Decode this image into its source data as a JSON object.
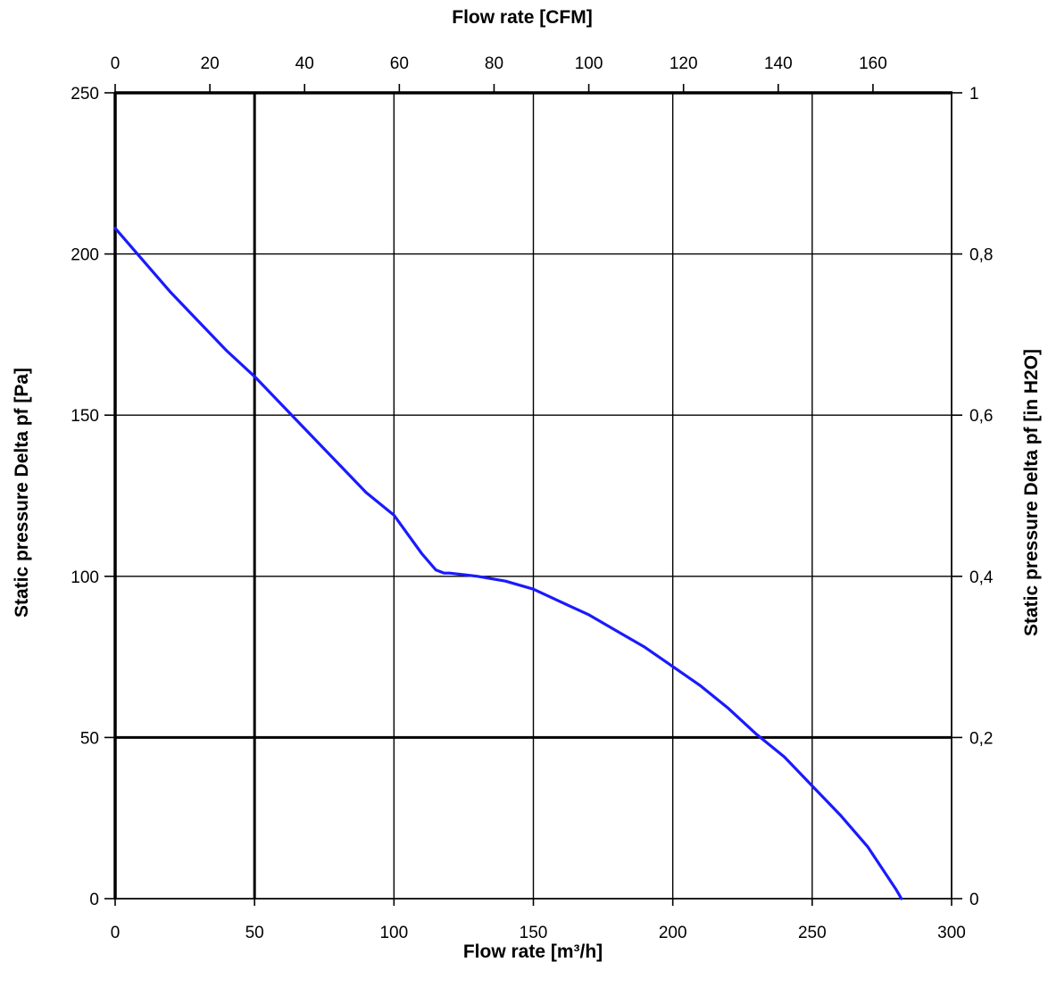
{
  "chart_data": {
    "type": "line",
    "title": "",
    "xlabel": "Flow rate [m³/h]",
    "ylabel": "Static pressure Delta pf [Pa]",
    "x2label": "Flow rate [CFM]",
    "y2label": "Static pressure Delta pf [in H2O]",
    "xlim": [
      0,
      300
    ],
    "ylim": [
      0,
      250
    ],
    "x2lim": [
      0,
      176.6
    ],
    "y2lim": [
      0,
      1.0
    ],
    "grid": true,
    "legend": "none",
    "x_ticks": [
      {
        "value": 0,
        "label": "0",
        "heavy": true
      },
      {
        "value": 50,
        "label": "50",
        "heavy": true
      },
      {
        "value": 100,
        "label": "100",
        "heavy": false
      },
      {
        "value": 150,
        "label": "150",
        "heavy": false
      },
      {
        "value": 200,
        "label": "200",
        "heavy": false
      },
      {
        "value": 250,
        "label": "250",
        "heavy": false
      },
      {
        "value": 300,
        "label": "300",
        "heavy": false
      }
    ],
    "y_ticks": [
      {
        "value": 0,
        "label": "0",
        "heavy": false
      },
      {
        "value": 50,
        "label": "50",
        "heavy": true
      },
      {
        "value": 100,
        "label": "100",
        "heavy": false
      },
      {
        "value": 150,
        "label": "150",
        "heavy": false
      },
      {
        "value": 200,
        "label": "200",
        "heavy": false
      },
      {
        "value": 250,
        "label": "250",
        "heavy": true
      }
    ],
    "x2_ticks": [
      {
        "value": 0,
        "label": "0"
      },
      {
        "value": 20,
        "label": "20"
      },
      {
        "value": 40,
        "label": "40"
      },
      {
        "value": 60,
        "label": "60"
      },
      {
        "value": 80,
        "label": "80"
      },
      {
        "value": 100,
        "label": "100"
      },
      {
        "value": 120,
        "label": "120"
      },
      {
        "value": 140,
        "label": "140"
      },
      {
        "value": 160,
        "label": "160"
      }
    ],
    "y2_ticks": [
      {
        "value": 0,
        "label": "0"
      },
      {
        "value": 0.2,
        "label": "0,2"
      },
      {
        "value": 0.4,
        "label": "0,4"
      },
      {
        "value": 0.6,
        "label": "0,6"
      },
      {
        "value": 0.8,
        "label": "0,8"
      },
      {
        "value": 1.0,
        "label": "1"
      }
    ],
    "series": [
      {
        "color": "#1a1aff",
        "x": [
          0,
          10,
          20,
          30,
          40,
          50,
          60,
          70,
          80,
          90,
          100,
          105,
          110,
          115,
          118,
          120,
          125,
          130,
          140,
          150,
          160,
          170,
          180,
          190,
          200,
          210,
          220,
          230,
          240,
          250,
          260,
          270,
          280,
          282
        ],
        "y": [
          208,
          198,
          188,
          179,
          170,
          162,
          153,
          144,
          135,
          126,
          119,
          113,
          107,
          102,
          101,
          101,
          100.5,
          100,
          98.5,
          96,
          92,
          88,
          83,
          78,
          72,
          66,
          59,
          51,
          44,
          35,
          26,
          16,
          3,
          0
        ]
      }
    ]
  }
}
